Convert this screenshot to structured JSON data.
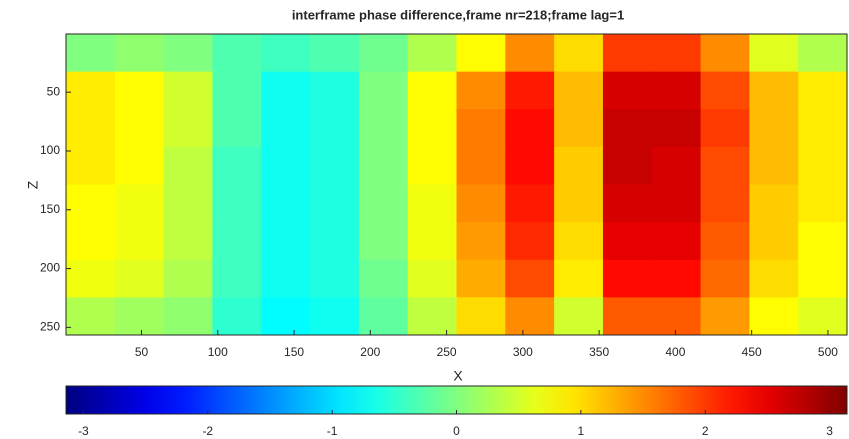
{
  "chart_data": {
    "type": "heatmap",
    "title": "interframe phase difference,frame nr=218;frame lag=1",
    "xlabel": "X",
    "ylabel": "Z",
    "x": [
      16.5,
      48.5,
      80.5,
      112.5,
      144.5,
      176.5,
      208.5,
      240.5,
      272.5,
      304.5,
      336.5,
      368.5,
      400.5,
      432.5,
      464.5,
      496.5
    ],
    "y": [
      16.5,
      48.5,
      80.5,
      112.5,
      144.5,
      176.5,
      208.5,
      240.5
    ],
    "values": [
      [
        0.0,
        0.1,
        0.0,
        -0.3,
        -0.4,
        -0.3,
        -0.1,
        0.3,
        0.8,
        1.5,
        1.0,
        2.0,
        2.0,
        1.5,
        0.6,
        0.3
      ],
      [
        0.9,
        0.8,
        0.5,
        -0.3,
        -0.7,
        -0.6,
        0.0,
        0.8,
        1.5,
        2.2,
        1.2,
        2.6,
        2.6,
        1.9,
        1.2,
        0.9
      ],
      [
        0.9,
        0.8,
        0.5,
        -0.3,
        -0.7,
        -0.6,
        0.0,
        0.8,
        1.6,
        2.3,
        1.2,
        2.7,
        2.7,
        2.0,
        1.2,
        0.9
      ],
      [
        0.9,
        0.8,
        0.4,
        -0.4,
        -0.7,
        -0.6,
        0.0,
        0.8,
        1.6,
        2.3,
        1.1,
        2.7,
        2.6,
        1.9,
        1.2,
        0.9
      ],
      [
        0.8,
        0.7,
        0.4,
        -0.4,
        -0.7,
        -0.6,
        0.0,
        0.7,
        1.5,
        2.2,
        1.1,
        2.6,
        2.6,
        1.9,
        1.1,
        0.9
      ],
      [
        0.8,
        0.7,
        0.4,
        -0.4,
        -0.7,
        -0.6,
        0.0,
        0.7,
        1.4,
        2.1,
        1.0,
        2.5,
        2.5,
        1.8,
        1.1,
        0.8
      ],
      [
        0.7,
        0.6,
        0.3,
        -0.4,
        -0.7,
        -0.6,
        -0.1,
        0.6,
        1.3,
        1.9,
        0.9,
        2.3,
        2.3,
        1.7,
        1.0,
        0.8
      ],
      [
        0.3,
        0.2,
        0.1,
        -0.5,
        -0.8,
        -0.7,
        -0.2,
        0.4,
        1.0,
        1.5,
        0.5,
        1.8,
        1.8,
        1.4,
        0.8,
        0.6
      ]
    ],
    "xlim": [
      0.5,
      512.5
    ],
    "xticks": [
      50,
      100,
      150,
      200,
      250,
      300,
      350,
      400,
      450,
      500
    ],
    "ylim": [
      0.5,
      256.5
    ],
    "yticks": [
      50,
      100,
      150,
      200,
      250
    ],
    "yreverse": true,
    "colormap": "jet",
    "clim": [
      -3.14,
      3.14
    ],
    "cticks": [
      -3,
      -2,
      -1,
      0,
      1,
      2,
      3
    ]
  }
}
